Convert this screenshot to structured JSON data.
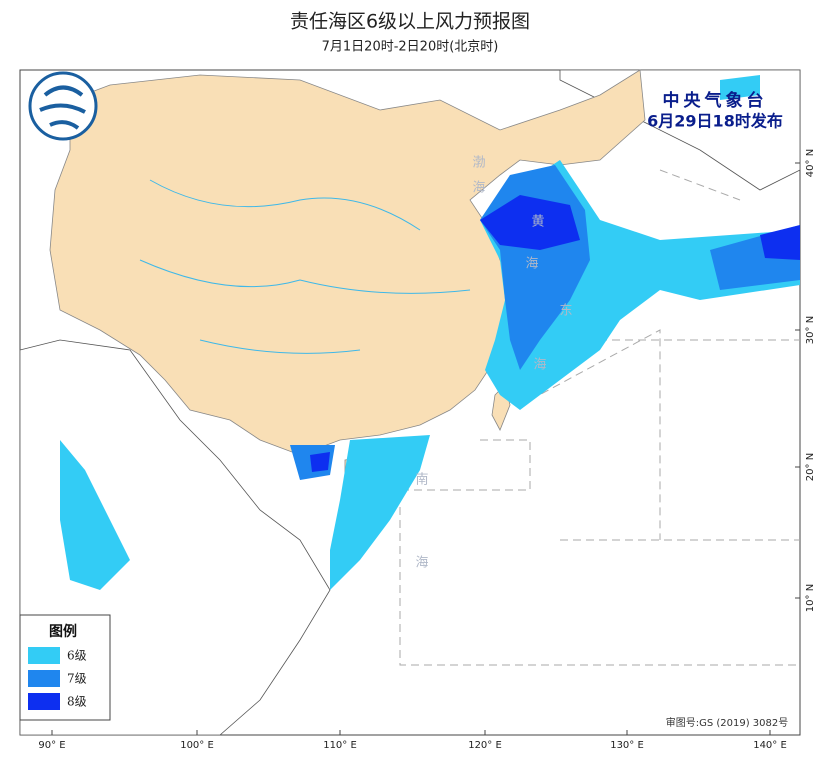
{
  "header": {
    "title": "责任海区6级以上风力预报图",
    "subtitle": "7月1日20时-2日20时(北京时)"
  },
  "agency": {
    "name": "中央气象台",
    "issued": "6月29日18时发布"
  },
  "legend": {
    "title": "图例",
    "items": [
      {
        "label": "6级",
        "color": "#33ccf5"
      },
      {
        "label": "7级",
        "color": "#1f86ee"
      },
      {
        "label": "8级",
        "color": "#0d2ff0"
      }
    ]
  },
  "sea_labels": [
    "渤",
    "海",
    "黄",
    "海",
    "东",
    "海",
    "南",
    "海"
  ],
  "axes": {
    "longitude": [
      "90° E",
      "100° E",
      "110° E",
      "120° E",
      "130° E",
      "140° E"
    ],
    "latitude": [
      "10° N",
      "20° N",
      "30° N",
      "40° N"
    ]
  },
  "approval": "审图号:GS (2019) 3082号"
}
